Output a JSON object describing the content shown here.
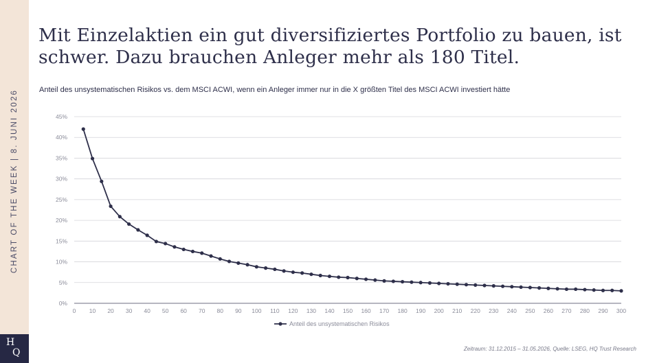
{
  "sidebar": {
    "label": "CHART OF THE WEEK | 8. JUNI 2026",
    "logo_line1": "H",
    "logo_line2": "Q",
    "logo_bg": "#262844",
    "bg": "#f3e5d8"
  },
  "header": {
    "title": "Mit Einzelaktien ein gut diversifiziertes Portfolio zu bauen, ist schwer. Dazu brauchen Anleger mehr als 180 Titel.",
    "subtitle": "Anteil des unsystematischen Risikos vs. dem MSCI ACWI, wenn ein Anleger immer nur in die X größten Titel des MSCI ACWI investiert hätte"
  },
  "footer": {
    "source": "Zeitraum: 31.12.2015 – 31.05.2026, Quelle: LSEG, HQ Trust Research"
  },
  "chart_data": {
    "type": "line",
    "title": "",
    "xlabel": "",
    "ylabel": "",
    "xlim": [
      0,
      300
    ],
    "ylim": [
      0,
      45
    ],
    "x_ticks": [
      0,
      10,
      20,
      30,
      40,
      50,
      60,
      70,
      80,
      90,
      100,
      110,
      120,
      130,
      140,
      150,
      160,
      170,
      180,
      190,
      200,
      210,
      220,
      230,
      240,
      250,
      260,
      270,
      280,
      290,
      300
    ],
    "y_ticks": [
      0,
      5,
      10,
      15,
      20,
      25,
      30,
      35,
      40,
      45
    ],
    "y_tick_labels": [
      "0%",
      "5%",
      "10%",
      "15%",
      "20%",
      "25%",
      "30%",
      "35%",
      "40%",
      "45%"
    ],
    "grid": true,
    "legend_position": "bottom",
    "line_color": "#2e2f4a",
    "series": [
      {
        "name": "Anteil des unsystematischen Risikos",
        "x": [
          5,
          10,
          15,
          20,
          25,
          30,
          35,
          40,
          45,
          50,
          55,
          60,
          65,
          70,
          75,
          80,
          85,
          90,
          95,
          100,
          105,
          110,
          115,
          120,
          125,
          130,
          135,
          140,
          145,
          150,
          155,
          160,
          165,
          170,
          175,
          180,
          185,
          190,
          195,
          200,
          205,
          210,
          215,
          220,
          225,
          230,
          235,
          240,
          245,
          250,
          255,
          260,
          265,
          270,
          275,
          280,
          285,
          290,
          295,
          300
        ],
        "values": [
          42.0,
          34.9,
          29.4,
          23.4,
          20.9,
          19.1,
          17.7,
          16.4,
          14.9,
          14.4,
          13.6,
          13.0,
          12.5,
          12.1,
          11.4,
          10.7,
          10.1,
          9.7,
          9.3,
          8.8,
          8.5,
          8.2,
          7.8,
          7.5,
          7.3,
          7.0,
          6.7,
          6.5,
          6.3,
          6.2,
          6.0,
          5.8,
          5.6,
          5.4,
          5.3,
          5.2,
          5.1,
          5.0,
          4.9,
          4.8,
          4.7,
          4.6,
          4.5,
          4.4,
          4.3,
          4.2,
          4.1,
          4.0,
          3.9,
          3.8,
          3.7,
          3.6,
          3.5,
          3.4,
          3.4,
          3.3,
          3.2,
          3.1,
          3.1,
          3.0
        ]
      }
    ]
  }
}
